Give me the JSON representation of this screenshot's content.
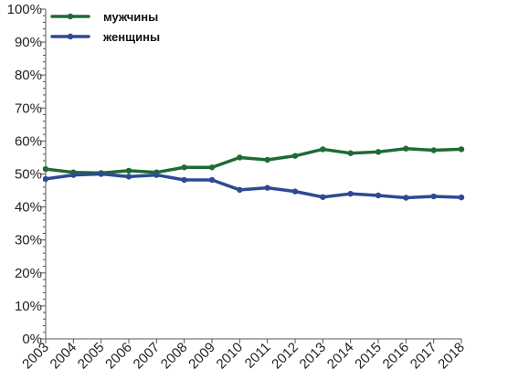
{
  "chart_data": {
    "type": "line",
    "title": "",
    "xlabel": "",
    "ylabel": "",
    "x": [
      "2003",
      "2004",
      "2005",
      "2006",
      "2007",
      "2008",
      "2009",
      "2010",
      "2011",
      "2012",
      "2013",
      "2014",
      "2015",
      "2016",
      "2017",
      "2018"
    ],
    "y_ticks": [
      "0%",
      "10%",
      "20%",
      "30%",
      "40%",
      "50%",
      "60%",
      "70%",
      "80%",
      "90%",
      "100%"
    ],
    "ylim": [
      0,
      100
    ],
    "grid": false,
    "legend_position": "top-left",
    "series": [
      {
        "name": "мужчины",
        "color": "#1e6b35",
        "values": [
          51.5,
          50.5,
          50.3,
          51.0,
          50.5,
          52.0,
          52.0,
          55.0,
          54.3,
          55.5,
          57.5,
          56.3,
          56.7,
          57.7,
          57.2,
          57.5
        ]
      },
      {
        "name": "женщины",
        "color": "#2e4a94",
        "values": [
          48.5,
          49.7,
          50.0,
          49.2,
          49.7,
          48.2,
          48.2,
          45.2,
          45.8,
          44.7,
          43.0,
          44.0,
          43.5,
          42.8,
          43.2,
          42.9
        ]
      }
    ]
  }
}
